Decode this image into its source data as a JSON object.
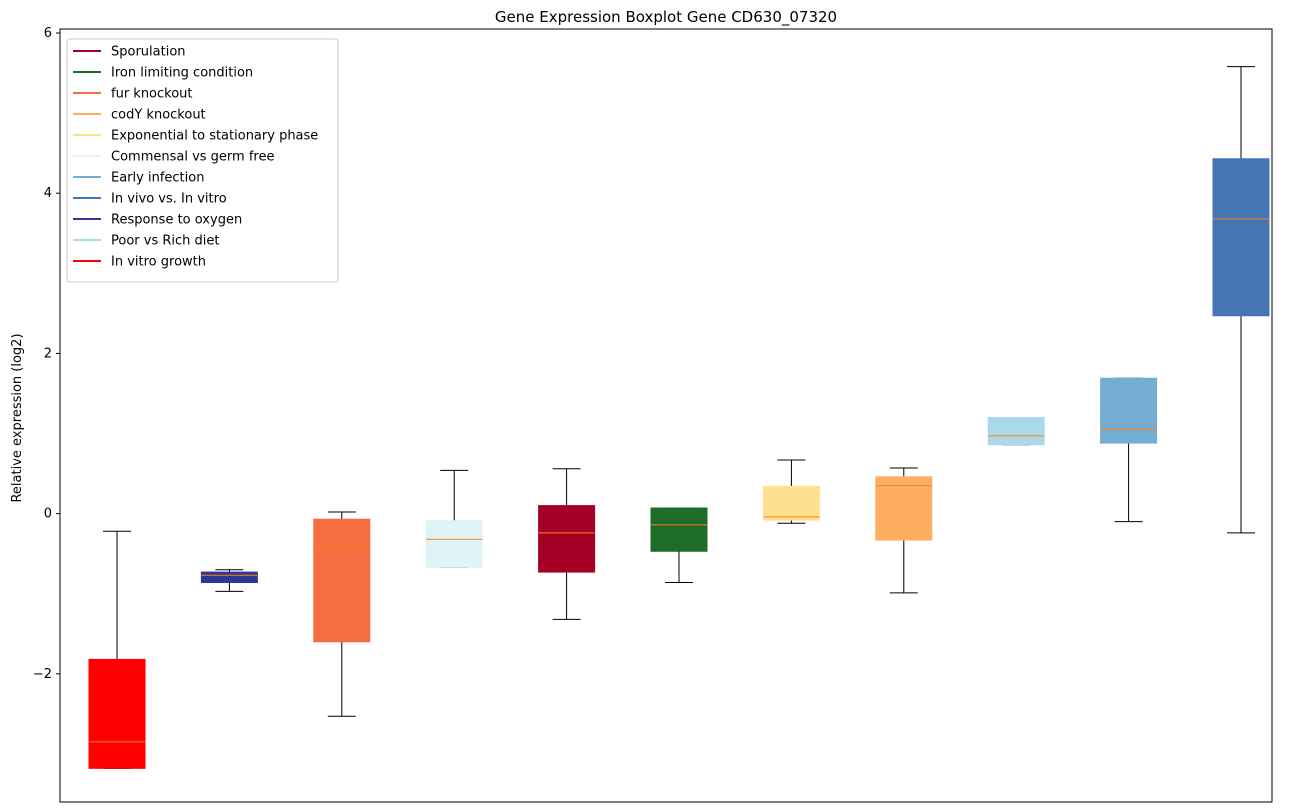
{
  "chart_data": {
    "type": "boxplot",
    "title": "Gene Expression Boxplot Gene CD630_07320",
    "xlabel": "",
    "ylabel": "Relative expression (log2)",
    "ylim": [
      -3.6,
      6.05
    ],
    "yticks": [
      -2,
      0,
      2,
      4,
      6
    ],
    "ytick_labels": [
      "−2",
      "0",
      "2",
      "4",
      "6"
    ],
    "grid": false,
    "legend_position": "top-left",
    "median_color": "#ff7f0e",
    "whisker_color": "#000000",
    "legend": [
      {
        "label": "Sporulation",
        "color": "#a50026"
      },
      {
        "label": "Iron limiting condition",
        "color": "#1e6b2a"
      },
      {
        "label": "fur knockout",
        "color": "#f46d43"
      },
      {
        "label": "codY knockout",
        "color": "#fdae61"
      },
      {
        "label": "Exponential to stationary phase",
        "color": "#fee090"
      },
      {
        "label": "Commensal vs germ free",
        "color": "#e0f3f8"
      },
      {
        "label": "Early infection",
        "color": "#74add1"
      },
      {
        "label": "In vivo vs. In vitro",
        "color": "#4575b4"
      },
      {
        "label": "Response to oxygen",
        "color": "#313695"
      },
      {
        "label": "Poor vs Rich diet",
        "color": "#abd9e9"
      },
      {
        "label": "In vitro growth",
        "color": "#ff0000"
      }
    ],
    "boxes": [
      {
        "name": "In vitro growth",
        "color": "#ff0000",
        "whislo": -3.18,
        "q1": -3.18,
        "med": -2.85,
        "q3": -1.82,
        "whishi": -0.22
      },
      {
        "name": "Response to oxygen",
        "color": "#313695",
        "whislo": -0.97,
        "q1": -0.86,
        "med": -0.77,
        "q3": -0.73,
        "whishi": -0.7
      },
      {
        "name": "fur knockout",
        "color": "#f46d43",
        "whislo": -2.53,
        "q1": -1.6,
        "med": -0.45,
        "q3": -0.07,
        "whishi": 0.02
      },
      {
        "name": "Commensal vs germ free",
        "color": "#e0f3f8",
        "whislo": -0.67,
        "q1": -0.67,
        "med": -0.32,
        "q3": -0.09,
        "whishi": 0.54
      },
      {
        "name": "Sporulation",
        "color": "#a50026",
        "whislo": -1.32,
        "q1": -0.73,
        "med": -0.24,
        "q3": 0.1,
        "whishi": 0.56
      },
      {
        "name": "Iron limiting condition",
        "color": "#1e6b2a",
        "whislo": -0.86,
        "q1": -0.47,
        "med": -0.14,
        "q3": 0.07,
        "whishi": 0.07
      },
      {
        "name": "Exponential to stationary phase",
        "color": "#fee090",
        "whislo": -0.12,
        "q1": -0.08,
        "med": -0.04,
        "q3": 0.34,
        "whishi": 0.67
      },
      {
        "name": "codY knockout",
        "color": "#fdae61",
        "whislo": -0.99,
        "q1": -0.33,
        "med": 0.35,
        "q3": 0.46,
        "whishi": 0.57
      },
      {
        "name": "Poor vs Rich diet",
        "color": "#abd9e9",
        "whislo": 0.86,
        "q1": 0.86,
        "med": 0.97,
        "q3": 1.2,
        "whishi": 1.2
      },
      {
        "name": "Early infection",
        "color": "#74add1",
        "whislo": -0.1,
        "q1": 0.88,
        "med": 1.06,
        "q3": 1.69,
        "whishi": 1.69
      },
      {
        "name": "In vivo vs. In vitro",
        "color": "#4575b4",
        "whislo": -0.24,
        "q1": 2.47,
        "med": 3.68,
        "q3": 4.43,
        "whishi": 5.58
      }
    ]
  }
}
